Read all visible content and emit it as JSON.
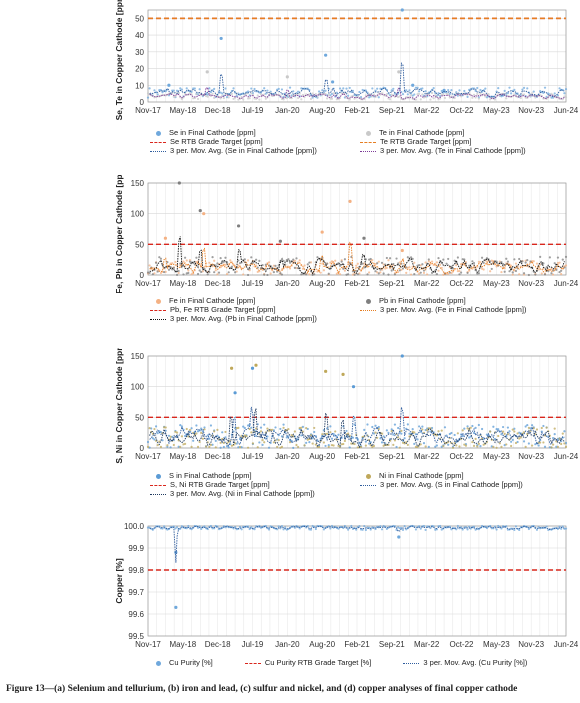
{
  "x_ticks": [
    "Nov-17",
    "May-18",
    "Dec-18",
    "Jul-19",
    "Jan-20",
    "Aug-20",
    "Feb-21",
    "Sep-21",
    "Mar-22",
    "Oct-22",
    "May-23",
    "Nov-23",
    "Jun-24"
  ],
  "caption": "Figure 13—(a) Selenium and tellurium, (b) iron and lead, (c) sulfur and nickel, and (d) copper analyses of final copper cathode",
  "chart_data": [
    {
      "type": "scatter",
      "ylabel": "Se, Te in Copper Cathode [ppm]",
      "ylim": [
        0,
        55
      ],
      "yticks": [
        0,
        10,
        20,
        30,
        40,
        50
      ],
      "target": 50,
      "series": [
        {
          "name": "Se in Final Cathode [ppm]",
          "color": "#6fa8dc",
          "kind": "points",
          "base": 5,
          "spread": 3,
          "spikes": [
            [
              0.6,
              10
            ],
            [
              2.1,
              38
            ],
            [
              5.1,
              28
            ],
            [
              5.3,
              12
            ],
            [
              7.3,
              55
            ],
            [
              7.6,
              10
            ],
            [
              8.5,
              7
            ]
          ]
        },
        {
          "name": "Te in Final Cathode [ppm]",
          "color": "#c9c9c9",
          "kind": "points",
          "base": 3,
          "spread": 2,
          "spikes": [
            [
              1.7,
              18
            ],
            [
              4.0,
              15
            ],
            [
              7.2,
              18
            ]
          ]
        },
        {
          "name": "Se RTB Grade Target [ppm]",
          "color": "#d9261c",
          "kind": "target"
        },
        {
          "name": "Te RTB Grade Target [ppm]",
          "color": "#e67e22",
          "kind": "target"
        },
        {
          "name": "3 per. Mov. Avg. (Se in Final Cathode [ppm])",
          "color": "#2f5d9e",
          "kind": "avg"
        },
        {
          "name": "3 per. Mov. Avg. (Te in Final Cathode [ppm])",
          "color": "#7d3c98",
          "kind": "avg"
        }
      ]
    },
    {
      "type": "scatter",
      "ylabel": "Fe, Pb in Copper Cathode [ppm]",
      "ylim": [
        0,
        150
      ],
      "yticks": [
        0,
        50,
        100,
        150
      ],
      "target": 50,
      "series": [
        {
          "name": "Fe in Final Cathode [ppm]",
          "color": "#f4b183",
          "kind": "points",
          "base": 10,
          "spread": 12,
          "spikes": [
            [
              0.5,
              60
            ],
            [
              1.6,
              100
            ],
            [
              5.0,
              70
            ],
            [
              5.8,
              120
            ],
            [
              7.3,
              40
            ]
          ]
        },
        {
          "name": "Pb in Final Cathode [ppm]",
          "color": "#7f7f7f",
          "kind": "points",
          "base": 12,
          "spread": 15,
          "spikes": [
            [
              0.9,
              150
            ],
            [
              1.5,
              105
            ],
            [
              2.6,
              80
            ],
            [
              3.8,
              55
            ],
            [
              6.2,
              60
            ]
          ]
        },
        {
          "name": "Pb, Fe RTB Grade Target [ppm]",
          "color": "#d9261c",
          "kind": "target"
        },
        {
          "name": "3 per. Mov. Avg. (Fe in Final Cathode [ppm])",
          "color": "#e67e22",
          "kind": "avg"
        },
        {
          "name": "3 per. Mov. Avg. (Pb in Final Cathode [ppm])",
          "color": "#111111",
          "kind": "avg"
        }
      ]
    },
    {
      "type": "scatter",
      "ylabel": "S, Ni in Copper Cathode [ppm]",
      "ylim": [
        0,
        150
      ],
      "yticks": [
        0,
        50,
        100,
        150
      ],
      "target": 50,
      "series": [
        {
          "name": "S in Final Cathode [ppm]",
          "color": "#5b9bd5",
          "kind": "points",
          "base": 15,
          "spread": 20,
          "spikes": [
            [
              2.5,
              90
            ],
            [
              3.0,
              130
            ],
            [
              5.9,
              100
            ],
            [
              7.3,
              150
            ]
          ]
        },
        {
          "name": "Ni in Final Cathode [ppm]",
          "color": "#bfa85a",
          "kind": "points",
          "base": 12,
          "spread": 18,
          "spikes": [
            [
              2.4,
              130
            ],
            [
              3.1,
              135
            ],
            [
              5.1,
              125
            ],
            [
              5.6,
              120
            ]
          ]
        },
        {
          "name": "S, Ni RTB Grade Target [ppm]",
          "color": "#d9261c",
          "kind": "target"
        },
        {
          "name": "3 per. Mov. Avg. (S in Final Cathode [ppm])",
          "color": "#2f5d9e",
          "kind": "avg"
        },
        {
          "name": "3 per. Mov. Avg. (Ni in Final Cathode [ppm])",
          "color": "#1f3a5f",
          "kind": "avg"
        }
      ]
    },
    {
      "type": "scatter",
      "ylabel": "Copper [%]",
      "ylim": [
        99.5,
        100
      ],
      "yticks": [
        99.5,
        99.6,
        99.7,
        99.8,
        99.9,
        100
      ],
      "tickfmt": 1,
      "target": 99.8,
      "series": [
        {
          "name": "Cu Purity [%]",
          "color": "#6fa8dc",
          "kind": "points",
          "base": 99.99,
          "spread": 0.01,
          "spikes": [
            [
              0.8,
              99.63
            ],
            [
              0.8,
              99.88
            ],
            [
              7.2,
              99.95
            ]
          ]
        },
        {
          "name": "Cu Purity RTB Grade Target [%]",
          "color": "#d9261c",
          "kind": "target"
        },
        {
          "name": "3 per. Mov. Avg. (Cu Purity [%])",
          "color": "#2f5d9e",
          "kind": "avg"
        }
      ]
    }
  ]
}
